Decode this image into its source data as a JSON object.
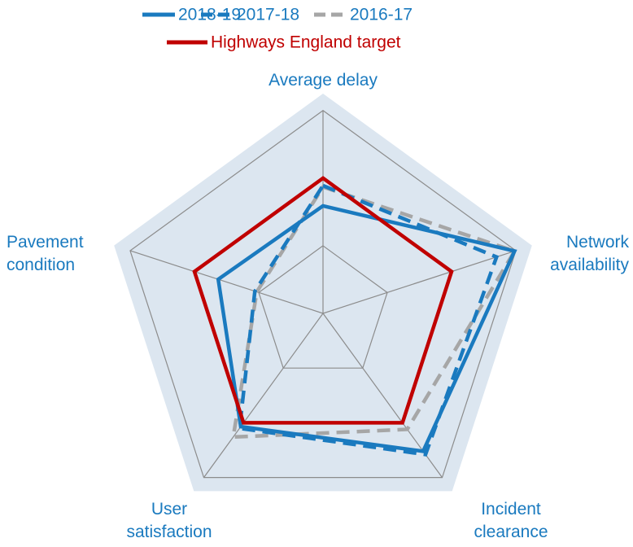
{
  "chart_data": {
    "type": "radar",
    "categories": [
      "Average delay",
      "Network availability",
      "Incident clearance",
      "User satisfaction",
      "Pavement condition"
    ],
    "series": [
      {
        "name": "2018-19",
        "color": "#1a7abf",
        "line_style": "solid",
        "values": [
          1.59,
          2.98,
          2.52,
          2.07,
          1.63
        ]
      },
      {
        "name": "2017-18",
        "color": "#1a7abf",
        "line_style": "dashed",
        "values": [
          1.89,
          2.7,
          2.58,
          2.1,
          1.06
        ]
      },
      {
        "name": "2016-17",
        "color": "#a6a6a6",
        "line_style": "dashed",
        "values": [
          1.87,
          2.98,
          2.12,
          2.26,
          1.03
        ]
      },
      {
        "name": "Highways England target",
        "color": "#c00000",
        "line_style": "solid",
        "values": [
          2,
          2,
          2,
          2,
          2
        ]
      }
    ],
    "ylim": [
      0,
      3.25
    ],
    "yticks": [
      1,
      2,
      3
    ],
    "grid": true,
    "background": "#dce6f0"
  }
}
